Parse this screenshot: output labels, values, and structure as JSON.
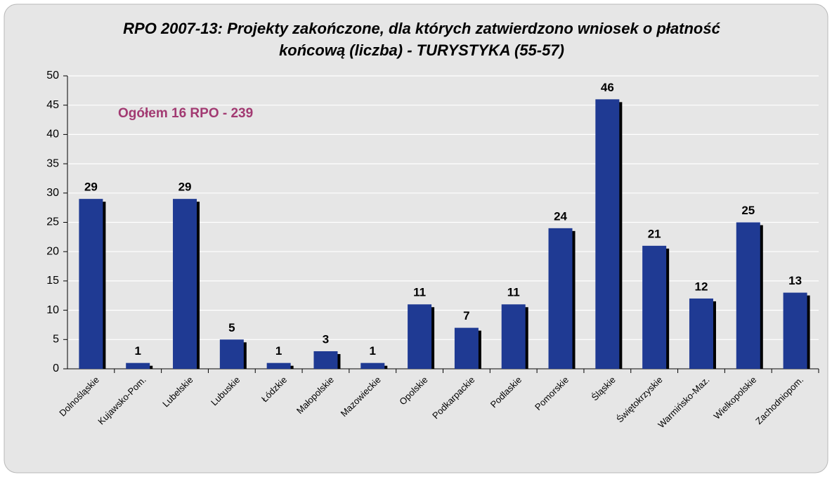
{
  "chart_data": {
    "type": "bar",
    "title": [
      "RPO 2007-13: Projekty zakończone, dla których zatwierdzono wniosek o płatność",
      "końcową (liczba) - TURYSTYKA (55-57)"
    ],
    "annotation": "Ogółem 16 RPO - 239",
    "categories": [
      "Dolnośląskie",
      "Kujawsko-Pom.",
      "Lubelskie",
      "Lubuskie",
      "Łódzkie",
      "Małopolskie",
      "Mazowieckie",
      "Opolskie",
      "Podkarpackie",
      "Podlaskie",
      "Pomorskie",
      "Śląskie",
      "Świętokrzyskie",
      "Warmińsko-Maz.",
      "Wielkopolskie",
      "Zachodniopom."
    ],
    "values": [
      29,
      1,
      29,
      5,
      1,
      3,
      1,
      11,
      7,
      11,
      24,
      46,
      21,
      12,
      25,
      13
    ],
    "color": "#1f3a93",
    "ylim": [
      0,
      50
    ],
    "yticks": [
      0,
      5,
      10,
      15,
      20,
      25,
      30,
      35,
      40,
      45,
      50
    ],
    "grid": true
  }
}
